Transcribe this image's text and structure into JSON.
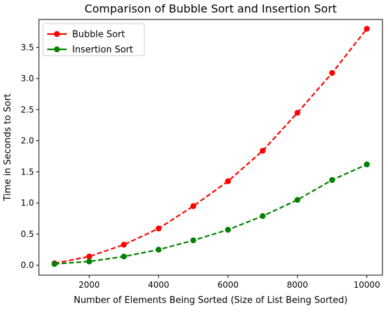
{
  "chart_data": {
    "type": "line",
    "title": "Comparison of Bubble Sort and Insertion Sort",
    "xlabel": "Number of Elements Being Sorted (Size of List Being Sorted)",
    "ylabel": "Time in Seconds to Sort",
    "x": [
      1000,
      2000,
      3000,
      4000,
      5000,
      6000,
      7000,
      8000,
      9000,
      10000
    ],
    "xlim": [
      550,
      10450
    ],
    "ylim": [
      -0.16,
      3.95
    ],
    "xticks": [
      2000,
      4000,
      6000,
      8000,
      10000
    ],
    "xtick_labels": [
      "2000",
      "4000",
      "6000",
      "8000",
      "10000"
    ],
    "yticks": [
      0.0,
      0.5,
      1.0,
      1.5,
      2.0,
      2.5,
      3.0,
      3.5
    ],
    "ytick_labels": [
      "0.0",
      "0.5",
      "1.0",
      "1.5",
      "2.0",
      "2.5",
      "3.0",
      "3.5"
    ],
    "grid": false,
    "legend_position": "top-left",
    "series": [
      {
        "name": "Bubble Sort",
        "color": "#ff0000",
        "values": [
          0.03,
          0.14,
          0.33,
          0.59,
          0.95,
          1.35,
          1.84,
          2.45,
          3.09,
          3.8
        ]
      },
      {
        "name": "Insertion Sort",
        "color": "#008000",
        "values": [
          0.02,
          0.06,
          0.14,
          0.25,
          0.4,
          0.57,
          0.79,
          1.05,
          1.37,
          1.62
        ]
      }
    ]
  }
}
